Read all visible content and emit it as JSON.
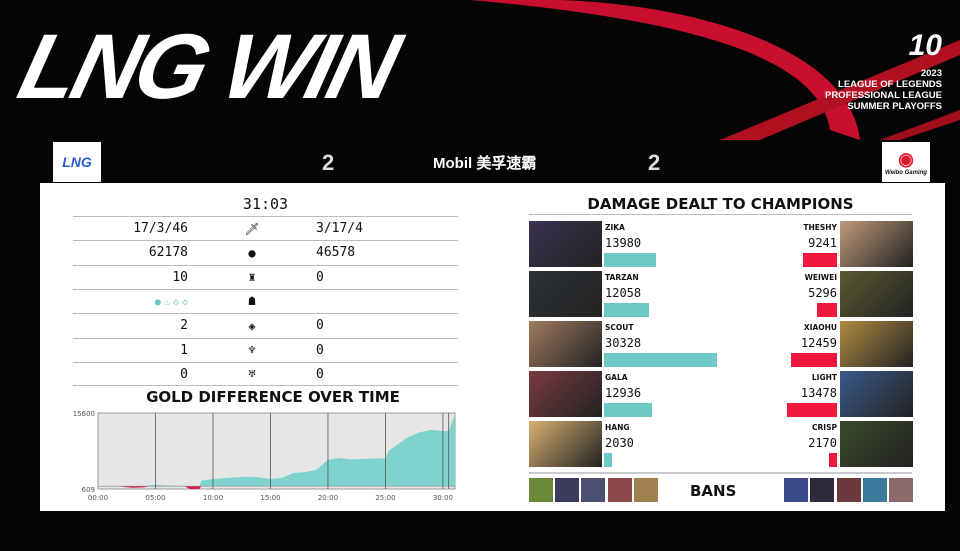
{
  "header": {
    "title": "LNG WIN",
    "event_logo": "LPL 10",
    "event_year": "2023",
    "event_lines": [
      "LEAGUE OF LEGENDS",
      "PROFESSIONAL LEAGUE",
      "SUMMER PLAYOFFS"
    ],
    "sponsor": "Mobil 美孚速霸"
  },
  "teams": {
    "left": {
      "name": "LNG",
      "score": "2",
      "color": "#6cc9c3"
    },
    "right": {
      "name": "Weibo Gaming",
      "score": "2",
      "color": "#f0173d"
    }
  },
  "stats": {
    "time": "31:03",
    "rows": [
      {
        "icon": "sword-icon",
        "left": "17/3/46",
        "right": "3/17/4"
      },
      {
        "icon": "gold-icon",
        "left": "62178",
        "right": "46578"
      },
      {
        "icon": "tower-icon",
        "left": "10",
        "right": "0"
      },
      {
        "icon": "dragon-icon",
        "left_dragons": [
          "ocean-drake-icon",
          "infernal-drake-icon",
          "hextech-drake-icon",
          "hextech-drake-icon"
        ],
        "right": ""
      },
      {
        "icon": "inhibitor-icon",
        "left": "2",
        "right": "0"
      },
      {
        "icon": "baron-icon",
        "left": "1",
        "right": "0"
      },
      {
        "icon": "herald-icon",
        "left": "0",
        "right": "0"
      }
    ]
  },
  "gold_chart": {
    "title": "GOLD DIFFERENCE OVER TIME"
  },
  "chart_data": {
    "type": "area",
    "title": "GOLD DIFFERENCE OVER TIME",
    "y_tick_labels": [
      "15600",
      "609"
    ],
    "x_tick_labels": [
      "00:00",
      "05:00",
      "10:00",
      "15:00",
      "20:00",
      "25:00",
      "30:00"
    ],
    "xlim": [
      0,
      31.05
    ],
    "ylim": [
      -609,
      15600
    ],
    "grid": "vertical",
    "positive_color": "#7fd3cf",
    "negative_color": "#e0174a",
    "x": [
      0,
      2,
      3,
      4,
      4.5,
      5,
      6,
      7,
      7.5,
      8,
      8.8,
      9,
      10,
      11,
      12,
      13,
      14,
      15,
      16,
      17,
      18,
      19,
      20,
      21,
      22,
      23,
      24,
      25,
      25.3,
      26,
      27,
      27.5,
      28,
      29,
      30,
      30.5,
      31,
      31.05
    ],
    "y": [
      0,
      -100,
      -350,
      -250,
      200,
      300,
      150,
      100,
      0,
      -600,
      -600,
      1200,
      1500,
      1700,
      1900,
      2000,
      1900,
      1500,
      1800,
      2800,
      3000,
      3500,
      5600,
      6000,
      5700,
      5800,
      5900,
      5900,
      7600,
      8800,
      10500,
      11000,
      11500,
      12000,
      11700,
      11800,
      15000,
      15600
    ]
  },
  "damage": {
    "title": "DAMAGE DEALT TO CHAMPIONS",
    "max": 30328,
    "left": [
      {
        "player": "ZIKA",
        "value": 13980
      },
      {
        "player": "TARZAN",
        "value": 12058
      },
      {
        "player": "SCOUT",
        "value": 30328
      },
      {
        "player": "GALA",
        "value": 12936
      },
      {
        "player": "HANG",
        "value": 2030
      }
    ],
    "right": [
      {
        "player": "THESHY",
        "value": 9241
      },
      {
        "player": "WEIWEI",
        "value": 5296
      },
      {
        "player": "XIAOHU",
        "value": 12459
      },
      {
        "player": "LIGHT",
        "value": 13478
      },
      {
        "player": "CRISP",
        "value": 2170
      }
    ]
  },
  "bans": {
    "label": "BANS"
  }
}
